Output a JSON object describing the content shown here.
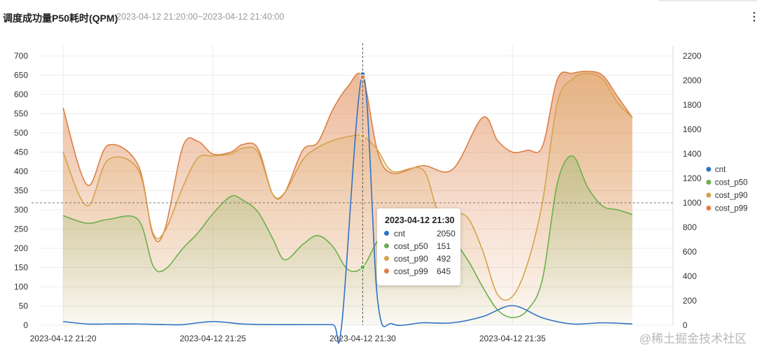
{
  "panel": {
    "title": "调度成功量P50耗时(QPM)",
    "range": "2023-04-12 21:20:00~2023-04-12 21:40:00",
    "menu_icon": "⋮"
  },
  "watermark": "@稀土掘金技术社区",
  "tooltip": {
    "title": "2023-04-12 21:30",
    "rows": [
      {
        "name": "cnt",
        "value": "2050",
        "color": "#2f72c4"
      },
      {
        "name": "cost_p50",
        "value": "151",
        "color": "#6ab04c"
      },
      {
        "name": "cost_p90",
        "value": "492",
        "color": "#d6a24c"
      },
      {
        "name": "cost_p99",
        "value": "645",
        "color": "#dd7f45"
      }
    ]
  },
  "chart_data": {
    "type": "area",
    "x_ticks": [
      {
        "t": 0,
        "label": "2023-04-12 21:20"
      },
      {
        "t": 5,
        "label": "2023-04-12 21:25"
      },
      {
        "t": 10,
        "label": "2023-04-12 21:30"
      },
      {
        "t": 15,
        "label": "2023-04-12 21:35"
      }
    ],
    "x_range_minutes": [
      0,
      19.3
    ],
    "y_left": {
      "min": 0,
      "max": 700,
      "ticks": [
        0,
        50,
        100,
        150,
        200,
        250,
        300,
        350,
        400,
        450,
        500,
        550,
        600,
        650,
        700
      ]
    },
    "y_right": {
      "min": 0,
      "max": 2200,
      "ticks": [
        0,
        200,
        400,
        600,
        800,
        1000,
        1200,
        1400,
        1600,
        1800,
        2000,
        2200
      ]
    },
    "legend": [
      "cnt",
      "cost_p50",
      "cost_p90",
      "cost_p99"
    ],
    "legend_position": "right",
    "crosshair": {
      "x_minute": 10,
      "right_axis_value": 1000
    },
    "series": [
      {
        "name": "cnt",
        "axis": "right",
        "color": "#2f72c4",
        "fill": false,
        "points": [
          [
            0,
            30
          ],
          [
            0.8,
            10
          ],
          [
            1.5,
            10
          ],
          [
            2.5,
            10
          ],
          [
            3.5,
            5
          ],
          [
            4,
            5
          ],
          [
            5,
            30
          ],
          [
            6,
            10
          ],
          [
            7,
            5
          ],
          [
            8,
            5
          ],
          [
            9,
            5
          ],
          [
            9.3,
            5
          ],
          [
            10,
            2050
          ],
          [
            10.5,
            200
          ],
          [
            11,
            10
          ],
          [
            12,
            20
          ],
          [
            13,
            20
          ],
          [
            14,
            70
          ],
          [
            15,
            160
          ],
          [
            16,
            60
          ],
          [
            17,
            10
          ],
          [
            18,
            20
          ],
          [
            19,
            10
          ]
        ]
      },
      {
        "name": "cost_p50",
        "axis": "left",
        "color": "#6ab04c",
        "fill": true,
        "points": [
          [
            0,
            285
          ],
          [
            0.8,
            265
          ],
          [
            1.5,
            275
          ],
          [
            2.5,
            275
          ],
          [
            3,
            155
          ],
          [
            3.4,
            145
          ],
          [
            4,
            200
          ],
          [
            4.5,
            240
          ],
          [
            5,
            290
          ],
          [
            5.6,
            335
          ],
          [
            6,
            325
          ],
          [
            6.5,
            295
          ],
          [
            7,
            225
          ],
          [
            7.4,
            170
          ],
          [
            8,
            210
          ],
          [
            8.5,
            233
          ],
          [
            9,
            205
          ],
          [
            9.5,
            145
          ],
          [
            10,
            151
          ],
          [
            10.5,
            220
          ],
          [
            11,
            260
          ],
          [
            12,
            240
          ],
          [
            13,
            215
          ],
          [
            13.5,
            170
          ],
          [
            14,
            100
          ],
          [
            14.5,
            40
          ],
          [
            15,
            20
          ],
          [
            15.5,
            40
          ],
          [
            16,
            120
          ],
          [
            16.5,
            370
          ],
          [
            17,
            440
          ],
          [
            17.5,
            360
          ],
          [
            18,
            310
          ],
          [
            18.5,
            300
          ],
          [
            19,
            288
          ]
        ]
      },
      {
        "name": "cost_p90",
        "axis": "left",
        "color": "#d6a24c",
        "fill": true,
        "points": [
          [
            0,
            450
          ],
          [
            0.8,
            310
          ],
          [
            1.5,
            430
          ],
          [
            2.5,
            405
          ],
          [
            3,
            240
          ],
          [
            3.4,
            245
          ],
          [
            4,
            360
          ],
          [
            4.5,
            435
          ],
          [
            5,
            440
          ],
          [
            5.6,
            445
          ],
          [
            6,
            460
          ],
          [
            6.5,
            450
          ],
          [
            7,
            340
          ],
          [
            7.4,
            345
          ],
          [
            8,
            430
          ],
          [
            8.5,
            462
          ],
          [
            9,
            480
          ],
          [
            9.5,
            490
          ],
          [
            10,
            492
          ],
          [
            10.5,
            455
          ],
          [
            11,
            400
          ],
          [
            12,
            405
          ],
          [
            12.5,
            300
          ],
          [
            13,
            290
          ],
          [
            13.5,
            280
          ],
          [
            14,
            195
          ],
          [
            14.5,
            80
          ],
          [
            15,
            75
          ],
          [
            15.5,
            160
          ],
          [
            16,
            320
          ],
          [
            16.5,
            580
          ],
          [
            17,
            640
          ],
          [
            17.5,
            655
          ],
          [
            18,
            640
          ],
          [
            18.5,
            580
          ],
          [
            19,
            540
          ]
        ]
      },
      {
        "name": "cost_p99",
        "axis": "left",
        "color": "#dd7f45",
        "fill": true,
        "points": [
          [
            0,
            565
          ],
          [
            0.8,
            365
          ],
          [
            1.5,
            468
          ],
          [
            2.5,
            417
          ],
          [
            3,
            235
          ],
          [
            3.4,
            250
          ],
          [
            4,
            465
          ],
          [
            4.5,
            478
          ],
          [
            5,
            445
          ],
          [
            5.6,
            450
          ],
          [
            6,
            470
          ],
          [
            6.5,
            460
          ],
          [
            7,
            340
          ],
          [
            7.4,
            345
          ],
          [
            8,
            455
          ],
          [
            8.5,
            475
          ],
          [
            9,
            560
          ],
          [
            9.5,
            620
          ],
          [
            10,
            645
          ],
          [
            10.5,
            450
          ],
          [
            11,
            395
          ],
          [
            12,
            415
          ],
          [
            13,
            405
          ],
          [
            14,
            540
          ],
          [
            14.5,
            480
          ],
          [
            15,
            450
          ],
          [
            15.5,
            455
          ],
          [
            16,
            465
          ],
          [
            16.5,
            640
          ],
          [
            17,
            655
          ],
          [
            17.5,
            660
          ],
          [
            18,
            650
          ],
          [
            18.5,
            595
          ],
          [
            19,
            540
          ]
        ]
      }
    ]
  }
}
